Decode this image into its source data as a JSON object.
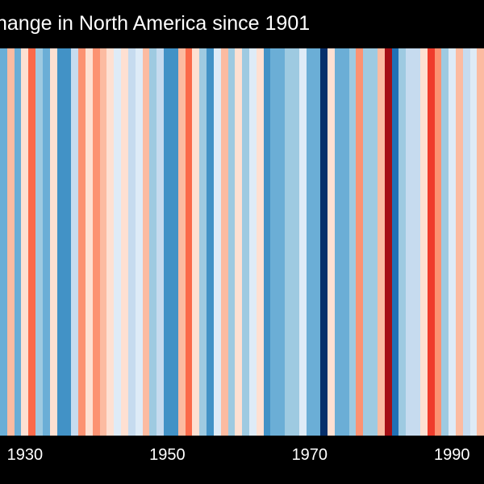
{
  "chart_data": {
    "type": "heatmap",
    "title": "hange in North America since 1901",
    "xlabel": "",
    "ylabel": "",
    "x_ticks": [
      1930,
      1950,
      1970,
      1990
    ],
    "x_range": [
      1927,
      1994
    ],
    "years": [
      1927,
      1928,
      1929,
      1930,
      1931,
      1932,
      1933,
      1934,
      1935,
      1936,
      1937,
      1938,
      1939,
      1940,
      1941,
      1942,
      1943,
      1944,
      1945,
      1946,
      1947,
      1948,
      1949,
      1950,
      1951,
      1952,
      1953,
      1954,
      1955,
      1956,
      1957,
      1958,
      1959,
      1960,
      1961,
      1962,
      1963,
      1964,
      1965,
      1966,
      1967,
      1968,
      1969,
      1970,
      1971,
      1972,
      1973,
      1974,
      1975,
      1976,
      1977,
      1978,
      1979,
      1980,
      1981,
      1982,
      1983,
      1984,
      1985,
      1986,
      1987,
      1988,
      1989,
      1990,
      1991,
      1992,
      1993,
      1994
    ],
    "colors": [
      "#6baed6",
      "#fcbba1",
      "#6baed6",
      "#fee0d2",
      "#fb6a4a",
      "#9ecae1",
      "#6baed6",
      "#fee0d2",
      "#4292c6",
      "#4292c6",
      "#c6dbef",
      "#fc9272",
      "#fee0d2",
      "#fc9272",
      "#fcbba1",
      "#fee0d2",
      "#deebf7",
      "#fee0d2",
      "#c6dbef",
      "#deebf7",
      "#fcbba1",
      "#9ecae1",
      "#c6dbef",
      "#4292c6",
      "#4292c6",
      "#fcbba1",
      "#fb6a4a",
      "#fee0d2",
      "#9ecae1",
      "#4292c6",
      "#deebf7",
      "#fcbba1",
      "#9ecae1",
      "#fee0d2",
      "#9ecae1",
      "#deebf7",
      "#fee0d2",
      "#4292c6",
      "#6baed6",
      "#6baed6",
      "#9ecae1",
      "#9ecae1",
      "#deebf7",
      "#6baed6",
      "#6baed6",
      "#08306b",
      "#fee0d2",
      "#6baed6",
      "#6baed6",
      "#9ecae1",
      "#fc9272",
      "#9ecae1",
      "#9ecae1",
      "#fcbba1",
      "#a50f15",
      "#2171b5",
      "#9ecae1",
      "#c6dbef",
      "#c6dbef",
      "#fee0d2",
      "#ef3b2c",
      "#fc9272",
      "#9ecae1",
      "#deebf7",
      "#fcbba1",
      "#c6dbef",
      "#deebf7",
      "#fcbba1"
    ],
    "grid": false,
    "legend": "none"
  }
}
